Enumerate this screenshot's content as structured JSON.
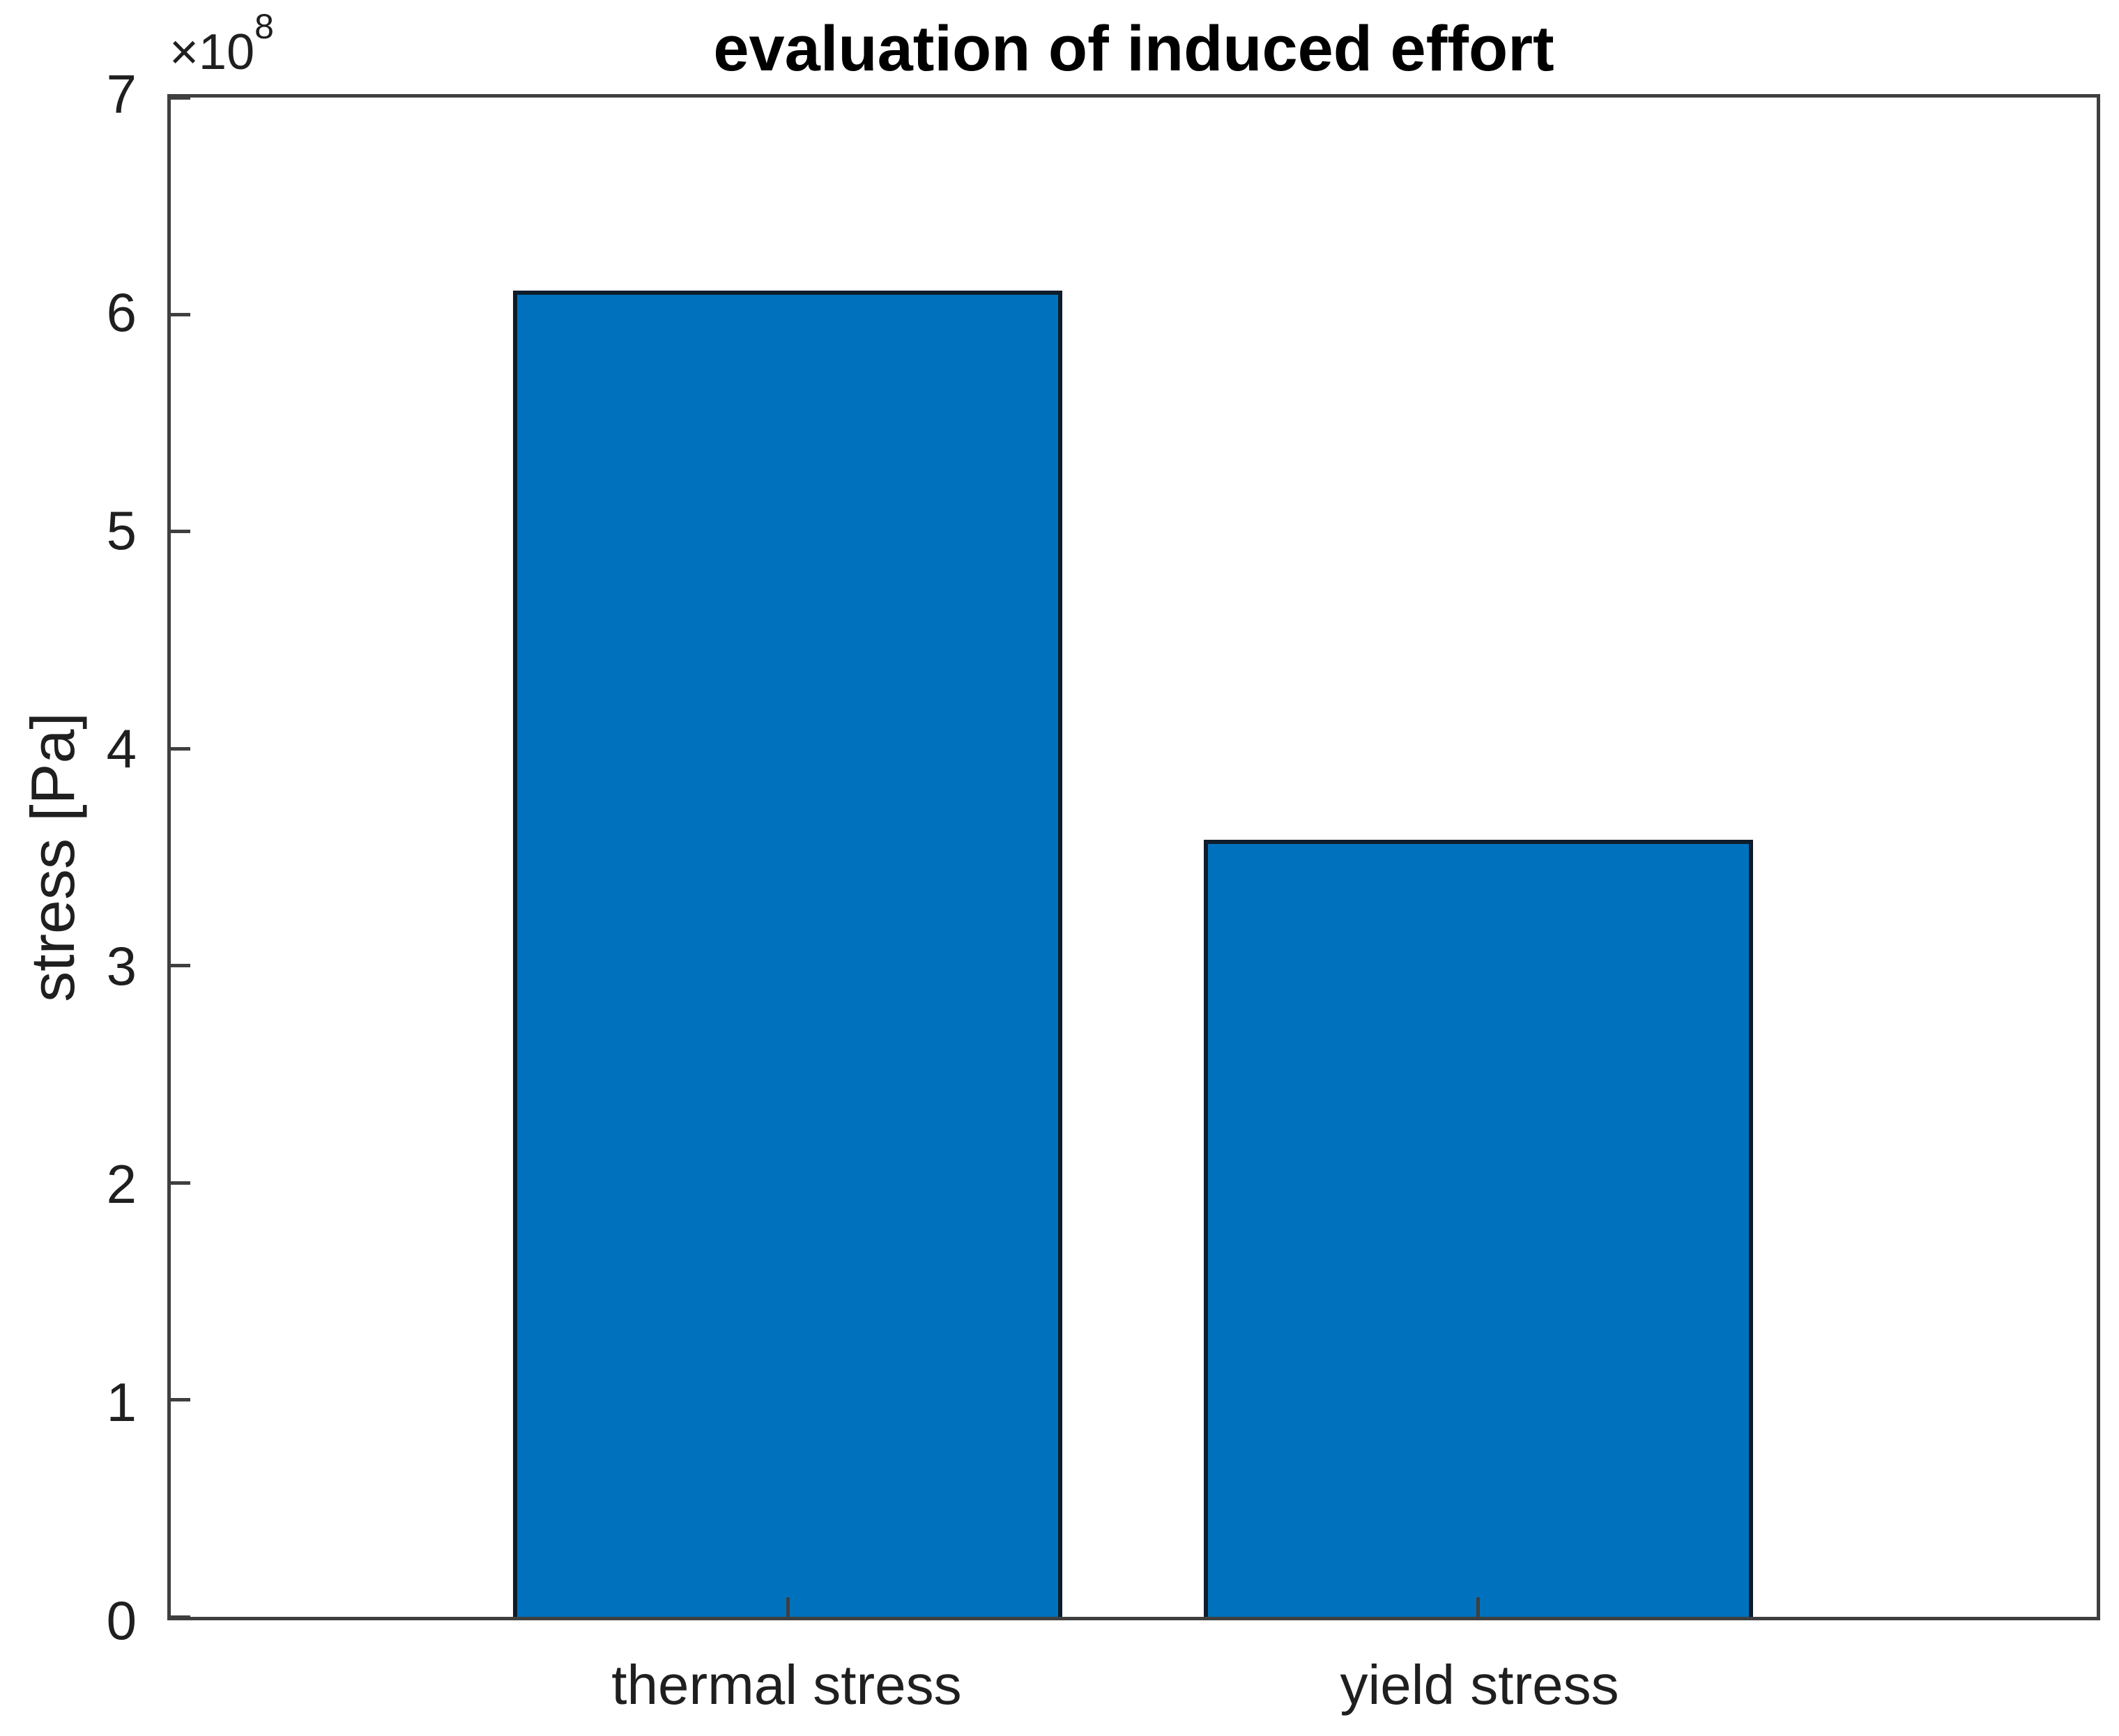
{
  "chart_data": {
    "type": "bar",
    "title": "evaluation of induced effort",
    "ylabel": "stress [Pa]",
    "xlabel": "",
    "categories": [
      "thermal stress",
      "yield stress"
    ],
    "values": [
      611000000,
      358000000
    ],
    "ylim": [
      0,
      700000000
    ],
    "y_axis": {
      "offset_label": {
        "multiplier": "×10",
        "exponent": "8"
      },
      "tick_values": [
        0,
        100000000,
        200000000,
        300000000,
        400000000,
        500000000,
        600000000,
        700000000
      ],
      "tick_labels": [
        "0",
        "1",
        "2",
        "3",
        "4",
        "5",
        "6",
        "7"
      ]
    },
    "grid": false,
    "legend": "none",
    "colors": {
      "bar_fill": "#0072BD",
      "bar_edge": "#0e1c2b",
      "axis": "#3f3f3f",
      "tick_text": "#1f1f1f",
      "title_text": "#000000",
      "background": "#ffffff"
    },
    "layout": {
      "bar_width_frac": 0.2853,
      "bar_center_fracs": [
        0.3204,
        0.6789
      ],
      "ticks_direction": "in"
    }
  }
}
